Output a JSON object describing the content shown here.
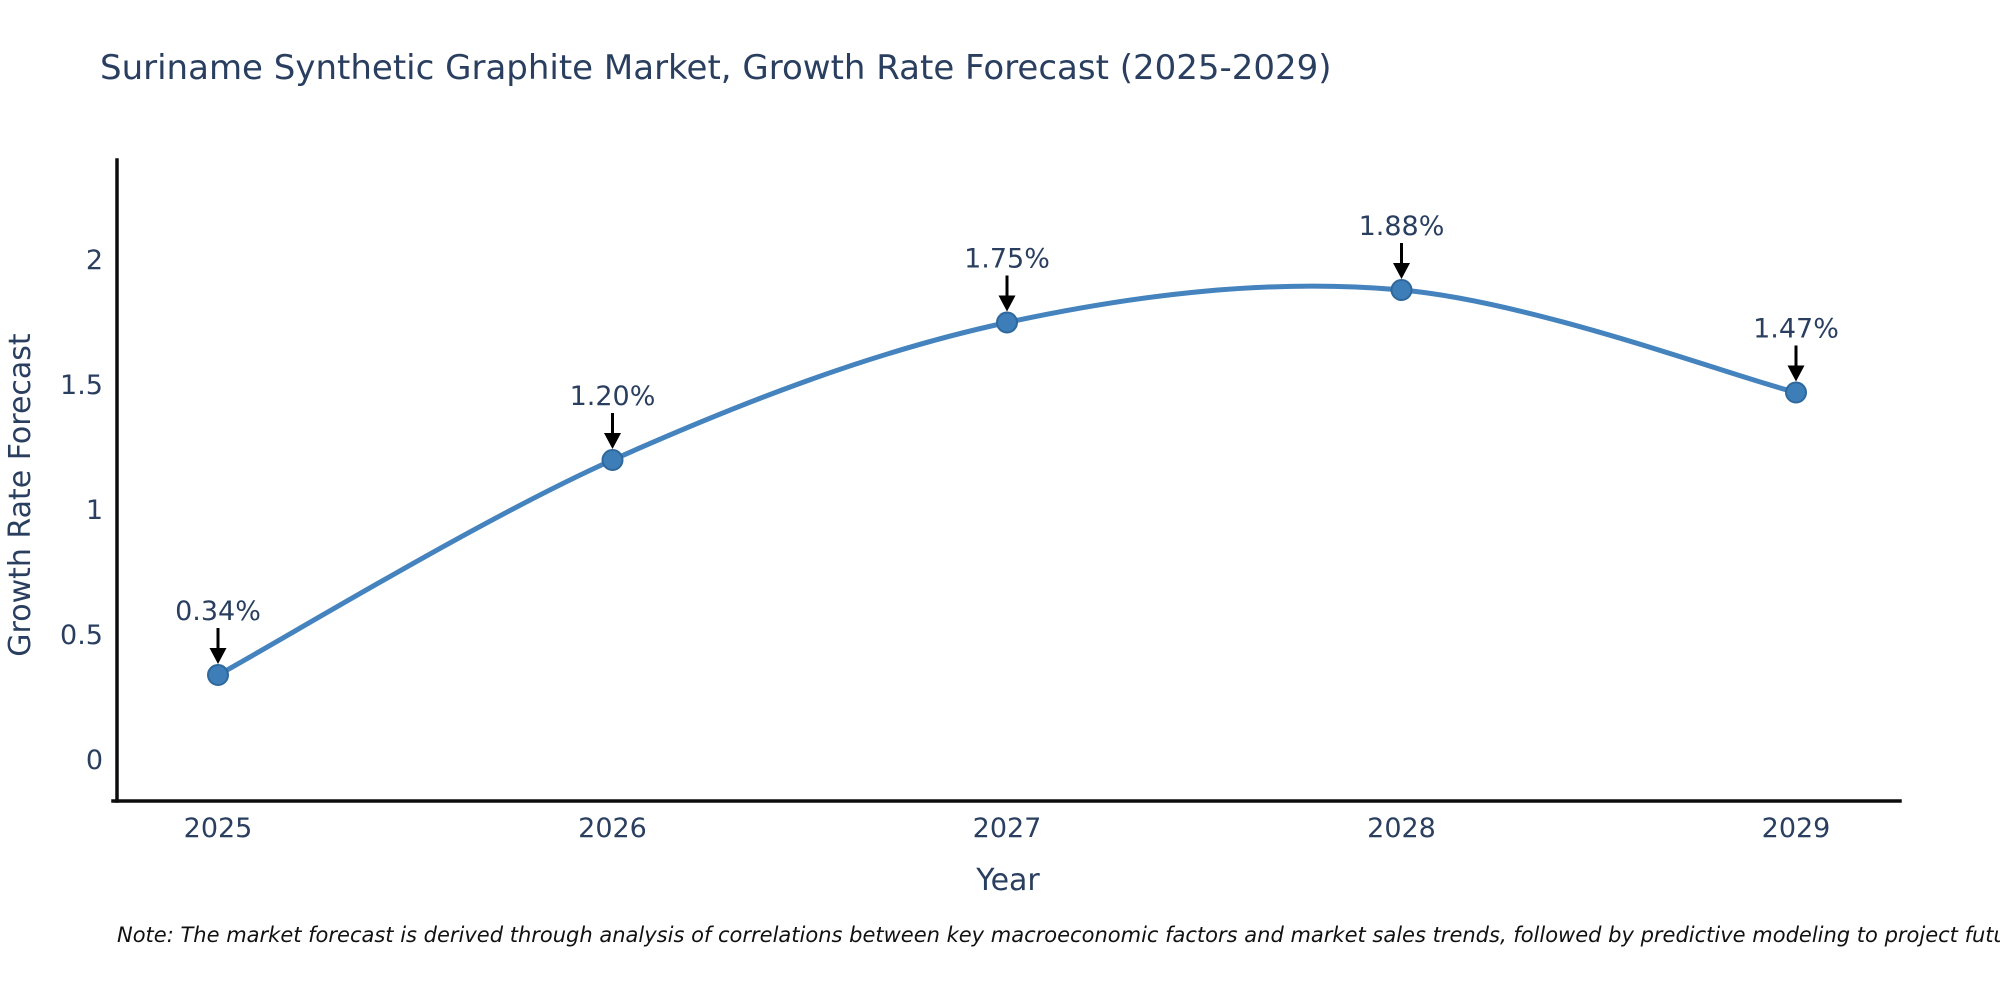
{
  "chart_data": {
    "type": "line",
    "title": "Suriname Synthetic Graphite Market, Growth Rate Forecast (2025-2029)",
    "xlabel": "Year",
    "ylabel": "Growth Rate Forecast",
    "categories": [
      "2025",
      "2026",
      "2027",
      "2028",
      "2029"
    ],
    "values": [
      0.34,
      1.2,
      1.75,
      1.88,
      1.47
    ],
    "point_labels": [
      "0.34%",
      "1.20%",
      "1.75%",
      "1.88%",
      "1.47%"
    ],
    "yticks": [
      0,
      0.5,
      1,
      1.5,
      2
    ],
    "ylim": [
      -0.17,
      2.4
    ],
    "grid": false,
    "legend": "none",
    "line_shape": "spline",
    "colors": {
      "line": "#4483bd",
      "marker_fill": "#3d7db8",
      "marker_edge": "#2f689d",
      "text": "#2a3f5f",
      "axis": "#0d0d0d",
      "annotation_arrow": "#000000",
      "background": "#ffffff"
    },
    "note": "Note: The market forecast is derived through analysis of correlations between key macroeconomic factors and market sales trends, followed by predictive modeling to project future sales"
  }
}
